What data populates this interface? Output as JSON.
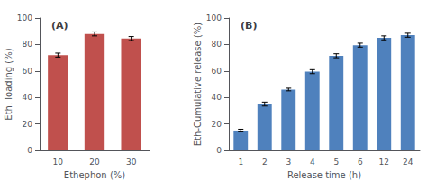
{
  "chart_data": [
    {
      "type": "bar",
      "annotation": "(A)",
      "categories": [
        "10",
        "20",
        "30"
      ],
      "values": [
        72,
        88,
        84.5
      ],
      "errors": [
        1.5,
        1.5,
        1.5
      ],
      "color": "#c0504d",
      "xlabel": "Ethephon (%)",
      "ylabel": "Eth. loading (%)",
      "ylim": [
        0,
        100
      ],
      "yticks": [
        0,
        20,
        40,
        60,
        80,
        100
      ],
      "grid": false
    },
    {
      "type": "bar",
      "annotation": "(B)",
      "categories": [
        "1",
        "2",
        "3",
        "4",
        "5",
        "6",
        "12",
        "24"
      ],
      "values": [
        15,
        35,
        46,
        59.5,
        71.5,
        79.5,
        85,
        87
      ],
      "errors": [
        1.0,
        1.5,
        1.0,
        1.5,
        1.5,
        1.5,
        1.5,
        1.5
      ],
      "color": "#4f81bd",
      "xlabel": "Release time (h)",
      "ylabel": "Eth-Cumulative release (%)",
      "ylim": [
        0,
        100
      ],
      "yticks": [
        0,
        20,
        40,
        60,
        80,
        100
      ],
      "grid": false
    }
  ]
}
